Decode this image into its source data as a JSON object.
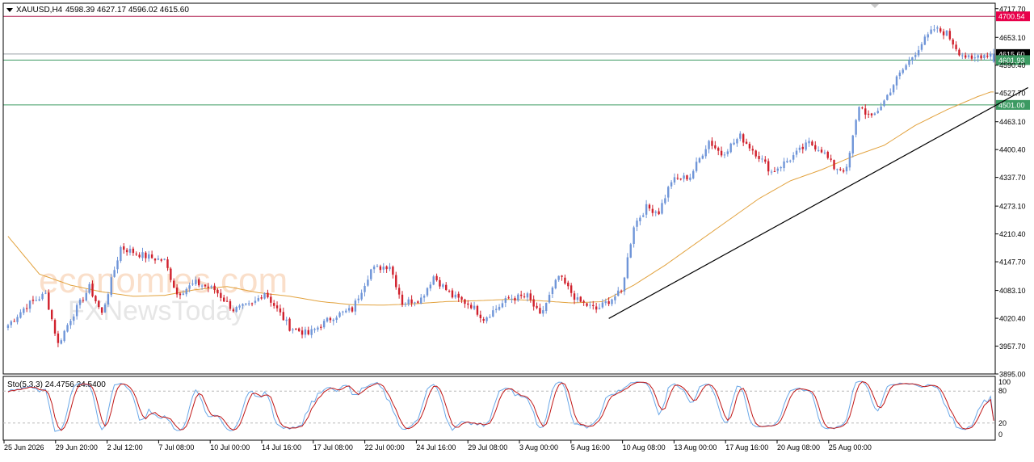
{
  "header": {
    "symbol": "XAUUSD,H4",
    "ohlc": "4598.39 4627.17 4596.02 4615.60"
  },
  "watermark": {
    "brand": "economies.com",
    "sub": "FXNewsToday"
  },
  "colors": {
    "bull": "#6f95d8",
    "bear": "#d0202c",
    "ma": "#e2a23e",
    "trend": "#000000",
    "resistance": "#b02050",
    "support": "#3c9a62",
    "stoch_main": "#6aa8e8",
    "stoch_signal": "#c01616"
  },
  "chart_data": [
    {
      "type": "candlestick",
      "symbol": "XAUUSD",
      "timeframe": "H4",
      "ylim": [
        3895,
        4730
      ],
      "price_ticks": [
        4717.7,
        4653.1,
        4590.4,
        4527.7,
        4463.1,
        4400.4,
        4337.7,
        4273.1,
        4210.4,
        4147.7,
        4083.1,
        4020.4,
        3957.7,
        3895.0
      ],
      "price_tick_labels": [
        "4717.70",
        "4653.10",
        "4590.40",
        "4527.70",
        "4463.10",
        "4400.40",
        "4337.70",
        "4273.10",
        "4210.40",
        "4147.70",
        "4083.10",
        "4020.40",
        "3957.70",
        "3895.00"
      ],
      "x_labels": [
        "25 Jun 2026",
        "29 Jun 20:00",
        "2 Jul 12:00",
        "7 Jul 08:00",
        "10 Jul 00:00",
        "14 Jul 16:00",
        "17 Jul 08:00",
        "22 Jul 00:00",
        "24 Jul 16:00",
        "29 Jul 08:00",
        "3 Aug 00:00",
        "5 Aug 16:00",
        "10 Aug 08:00",
        "13 Aug 00:00",
        "17 Aug 16:00",
        "20 Aug 08:00",
        "25 Aug 00:00"
      ],
      "key_path": [
        [
          0,
          4005
        ],
        [
          6,
          4050
        ],
        [
          12,
          4075
        ],
        [
          16,
          3962
        ],
        [
          20,
          4020
        ],
        [
          26,
          4090
        ],
        [
          30,
          4030
        ],
        [
          36,
          4180
        ],
        [
          44,
          4160
        ],
        [
          50,
          4150
        ],
        [
          54,
          4075
        ],
        [
          60,
          4100
        ],
        [
          66,
          4085
        ],
        [
          72,
          4040
        ],
        [
          78,
          4050
        ],
        [
          82,
          4080
        ],
        [
          90,
          4000
        ],
        [
          96,
          3985
        ],
        [
          104,
          4025
        ],
        [
          110,
          4040
        ],
        [
          116,
          4130
        ],
        [
          122,
          4140
        ],
        [
          126,
          4055
        ],
        [
          132,
          4065
        ],
        [
          136,
          4115
        ],
        [
          142,
          4070
        ],
        [
          148,
          4050
        ],
        [
          152,
          4020
        ],
        [
          160,
          4065
        ],
        [
          166,
          4070
        ],
        [
          170,
          4025
        ],
        [
          176,
          4115
        ],
        [
          182,
          4060
        ],
        [
          188,
          4040
        ],
        [
          192,
          4060
        ],
        [
          196,
          4080
        ],
        [
          200,
          4230
        ],
        [
          204,
          4270
        ],
        [
          208,
          4260
        ],
        [
          212,
          4330
        ],
        [
          218,
          4340
        ],
        [
          224,
          4420
        ],
        [
          228,
          4390
        ],
        [
          234,
          4430
        ],
        [
          240,
          4385
        ],
        [
          244,
          4350
        ],
        [
          250,
          4380
        ],
        [
          256,
          4415
        ],
        [
          260,
          4400
        ],
        [
          264,
          4360
        ],
        [
          268,
          4355
        ],
        [
          272,
          4500
        ],
        [
          276,
          4470
        ],
        [
          280,
          4510
        ],
        [
          284,
          4560
        ],
        [
          288,
          4600
        ],
        [
          292,
          4640
        ],
        [
          296,
          4672
        ],
        [
          300,
          4662
        ],
        [
          304,
          4620
        ],
        [
          308,
          4600
        ],
        [
          310,
          4612
        ],
        [
          314,
          4616
        ]
      ],
      "moving_average": [
        [
          0,
          4205
        ],
        [
          10,
          4120
        ],
        [
          20,
          4095
        ],
        [
          30,
          4080
        ],
        [
          40,
          4070
        ],
        [
          50,
          4072
        ],
        [
          60,
          4085
        ],
        [
          70,
          4092
        ],
        [
          80,
          4078
        ],
        [
          90,
          4070
        ],
        [
          100,
          4058
        ],
        [
          110,
          4051
        ],
        [
          120,
          4050
        ],
        [
          130,
          4053
        ],
        [
          140,
          4058
        ],
        [
          150,
          4060
        ],
        [
          160,
          4063
        ],
        [
          170,
          4060
        ],
        [
          180,
          4055
        ],
        [
          190,
          4058
        ],
        [
          200,
          4095
        ],
        [
          210,
          4140
        ],
        [
          220,
          4190
        ],
        [
          230,
          4240
        ],
        [
          240,
          4290
        ],
        [
          250,
          4330
        ],
        [
          260,
          4355
        ],
        [
          270,
          4385
        ],
        [
          280,
          4410
        ],
        [
          290,
          4455
        ],
        [
          300,
          4490
        ],
        [
          310,
          4520
        ],
        [
          314,
          4530
        ]
      ],
      "trendline": {
        "from": [
          192,
          4020
        ],
        "to": [
          326,
          4540
        ]
      },
      "levels": [
        {
          "label": "4700.54",
          "price": 4700.54,
          "style": "resistance"
        },
        {
          "label": "4615.60",
          "price": 4615.6,
          "style": "current"
        },
        {
          "label": "4601.93",
          "price": 4601.93,
          "style": "support"
        },
        {
          "label": "4501.00",
          "price": 4501.0,
          "style": "support"
        }
      ]
    },
    {
      "type": "line",
      "indicator": "Sto(5,3,3)",
      "label": "Sto(5,3,3) 24.4756 24.5400",
      "ylim": [
        0,
        100
      ],
      "ticks": [
        100,
        80,
        20,
        0
      ],
      "tick_labels": [
        "100",
        "80",
        "20",
        "0"
      ],
      "levels": [
        80,
        20
      ],
      "main_value": 24.4756,
      "signal_value": 24.54
    }
  ]
}
